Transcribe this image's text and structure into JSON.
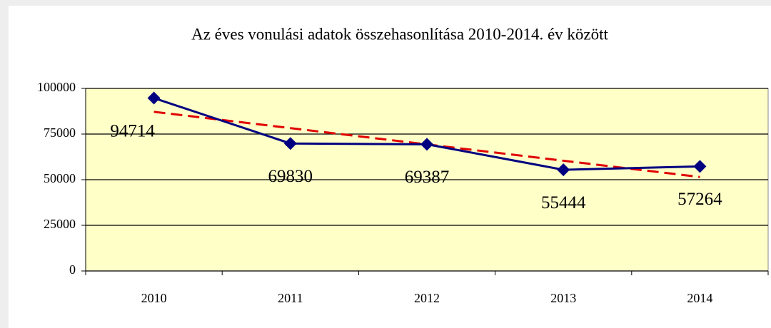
{
  "chart_data": {
    "type": "line",
    "title": "Az éves vonulási adatok összehasonlítása 2010-2014. év között",
    "categories": [
      "2010",
      "2011",
      "2012",
      "2013",
      "2014"
    ],
    "series": [
      {
        "color": "#000080",
        "values": [
          94714,
          69830,
          69387,
          55444,
          57264
        ]
      }
    ],
    "trendline": {
      "color": "#e00000",
      "dashed": true
    },
    "ylim": [
      0,
      100000
    ],
    "yticks": [
      0,
      25000,
      50000,
      75000,
      100000
    ],
    "grid": true,
    "plot_background": "#ffffc8",
    "marker": "diamond",
    "data_labels": true
  }
}
